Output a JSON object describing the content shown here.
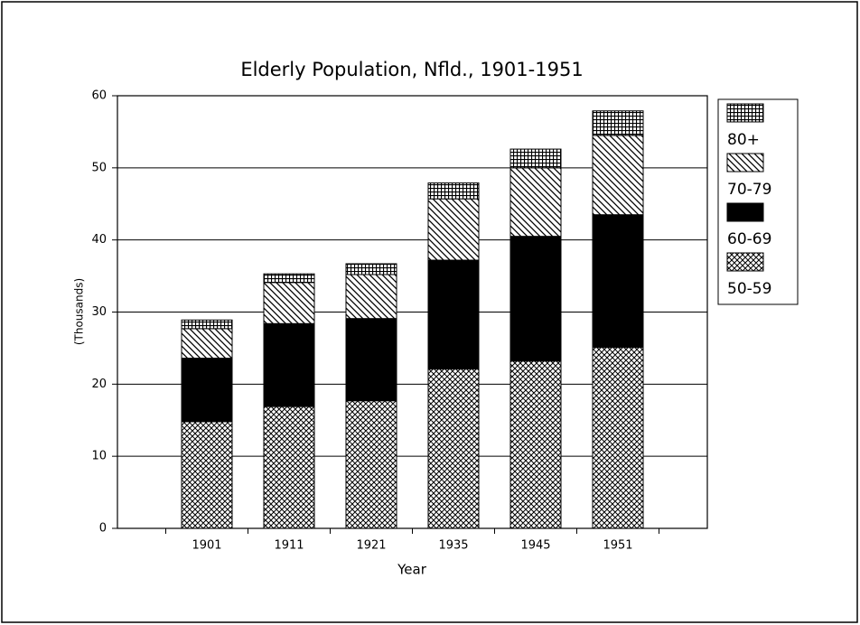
{
  "chart_data": {
    "type": "stacked_bar",
    "title": "Elderly Population,  Nfld.,  1901-1951",
    "x_label": "Year",
    "y_label": "(Thousands)",
    "categories": [
      "1901",
      "1911",
      "1921",
      "1935",
      "1945",
      "1951"
    ],
    "series": [
      {
        "name": "50-59",
        "color": "#000000",
        "pattern": "crosshatch",
        "values": [
          14.8,
          16.9,
          17.7,
          22.1,
          23.2,
          25.1
        ]
      },
      {
        "name": "60-69",
        "color": "#000000",
        "pattern": "solid",
        "values": [
          8.8,
          11.5,
          11.4,
          15.1,
          17.3,
          18.4
        ]
      },
      {
        "name": "70-79",
        "color": "#000000",
        "pattern": "diagonal",
        "values": [
          4.1,
          5.7,
          6.1,
          8.5,
          9.5,
          11.0
        ]
      },
      {
        "name": "80+",
        "color": "#000000",
        "pattern": "grid",
        "values": [
          1.2,
          1.2,
          1.5,
          2.2,
          2.6,
          3.4
        ]
      }
    ],
    "ylim": [
      0,
      60
    ],
    "yticks": [
      0,
      10,
      20,
      30,
      40,
      50,
      60
    ],
    "grid": true,
    "legend": "right"
  }
}
